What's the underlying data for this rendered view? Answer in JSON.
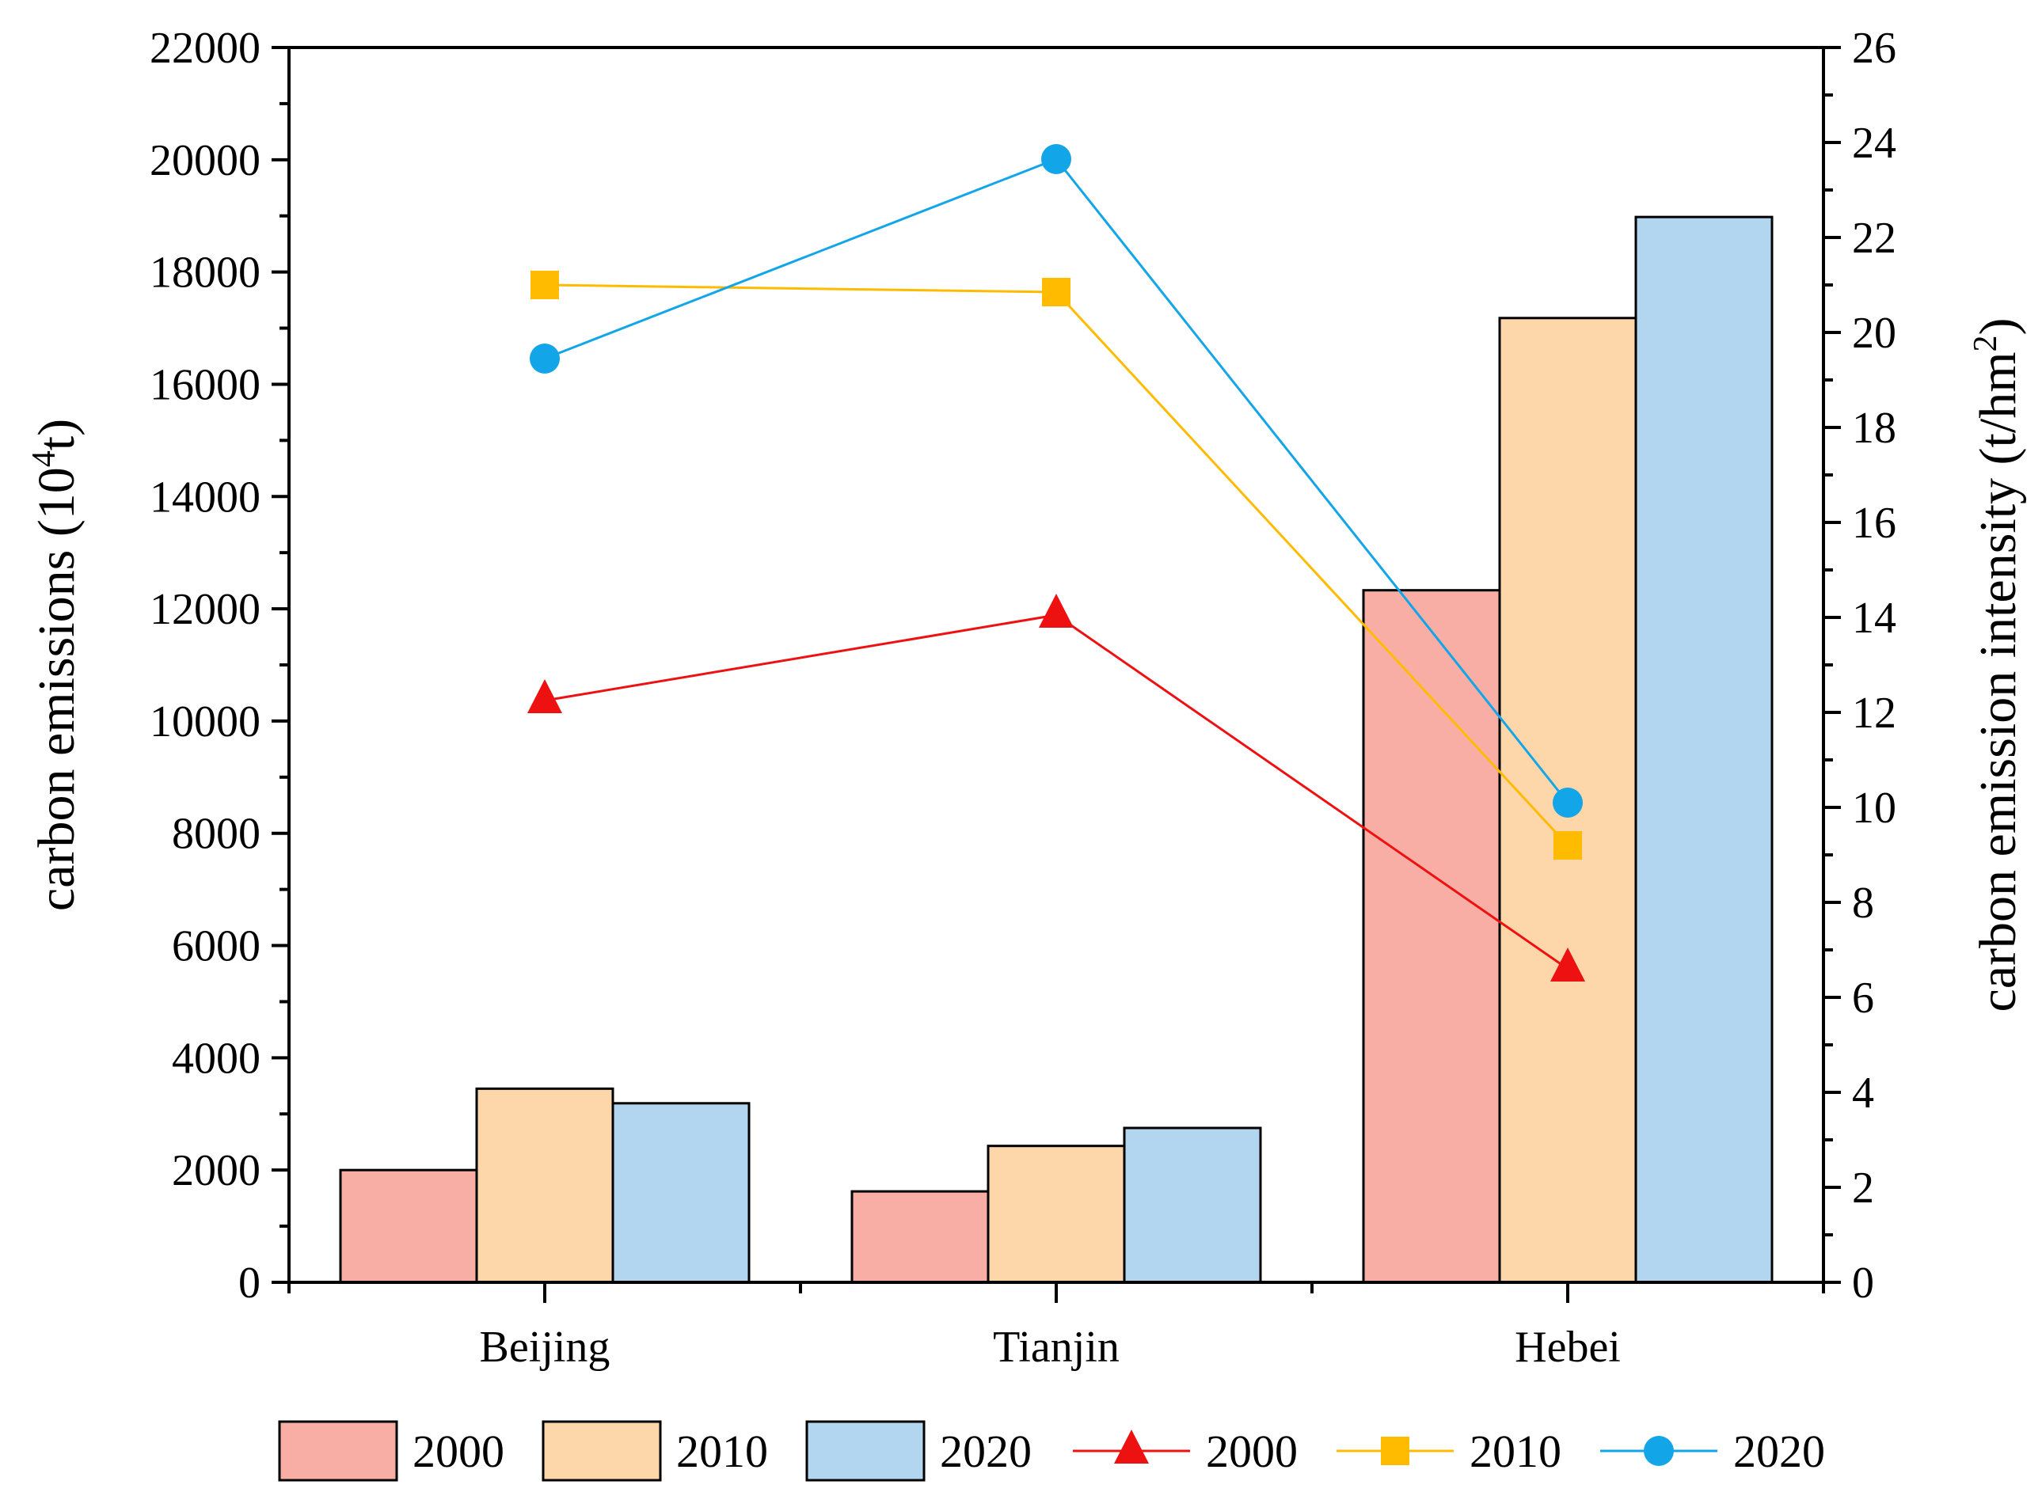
{
  "chart_data": {
    "type": "bar",
    "categories": [
      "Beijing",
      "Tianjin",
      "Hebei"
    ],
    "series": [
      {
        "name": "2000",
        "kind": "bar",
        "axis": "left",
        "color": "#F8AEA4",
        "values": [
          2000,
          1620,
          12330
        ]
      },
      {
        "name": "2010",
        "kind": "bar",
        "axis": "left",
        "color": "#FDD6AA",
        "values": [
          3450,
          2430,
          17180
        ]
      },
      {
        "name": "2020",
        "kind": "bar",
        "axis": "left",
        "color": "#B3D6F0",
        "values": [
          3190,
          2750,
          18980
        ]
      },
      {
        "name": "2000",
        "kind": "line",
        "axis": "right",
        "marker": "triangle",
        "color": "#EE1111",
        "values": [
          12.25,
          14.05,
          6.6
        ]
      },
      {
        "name": "2010",
        "kind": "line",
        "axis": "right",
        "marker": "square",
        "color": "#FFBB00",
        "values": [
          21.0,
          20.85,
          9.2
        ]
      },
      {
        "name": "2020",
        "kind": "line",
        "axis": "right",
        "marker": "circle",
        "color": "#12A5E8",
        "values": [
          19.45,
          23.65,
          10.1
        ]
      }
    ],
    "ylabel_left": {
      "main": "carbon emissions (10",
      "sup": "4",
      "tail": "t)"
    },
    "ylabel_right": {
      "main": "carbon emission intensity (t/hm",
      "sup": "2",
      "tail": ")"
    },
    "ylim_left": [
      0,
      22000
    ],
    "ylim_right": [
      0,
      26
    ],
    "yticks_left": [
      0,
      2000,
      4000,
      6000,
      8000,
      10000,
      12000,
      14000,
      16000,
      18000,
      20000,
      22000
    ],
    "yticks_right": [
      0,
      2,
      4,
      6,
      8,
      10,
      12,
      14,
      16,
      18,
      20,
      22,
      24,
      26
    ],
    "legend_position": "bottom",
    "grid": false
  }
}
